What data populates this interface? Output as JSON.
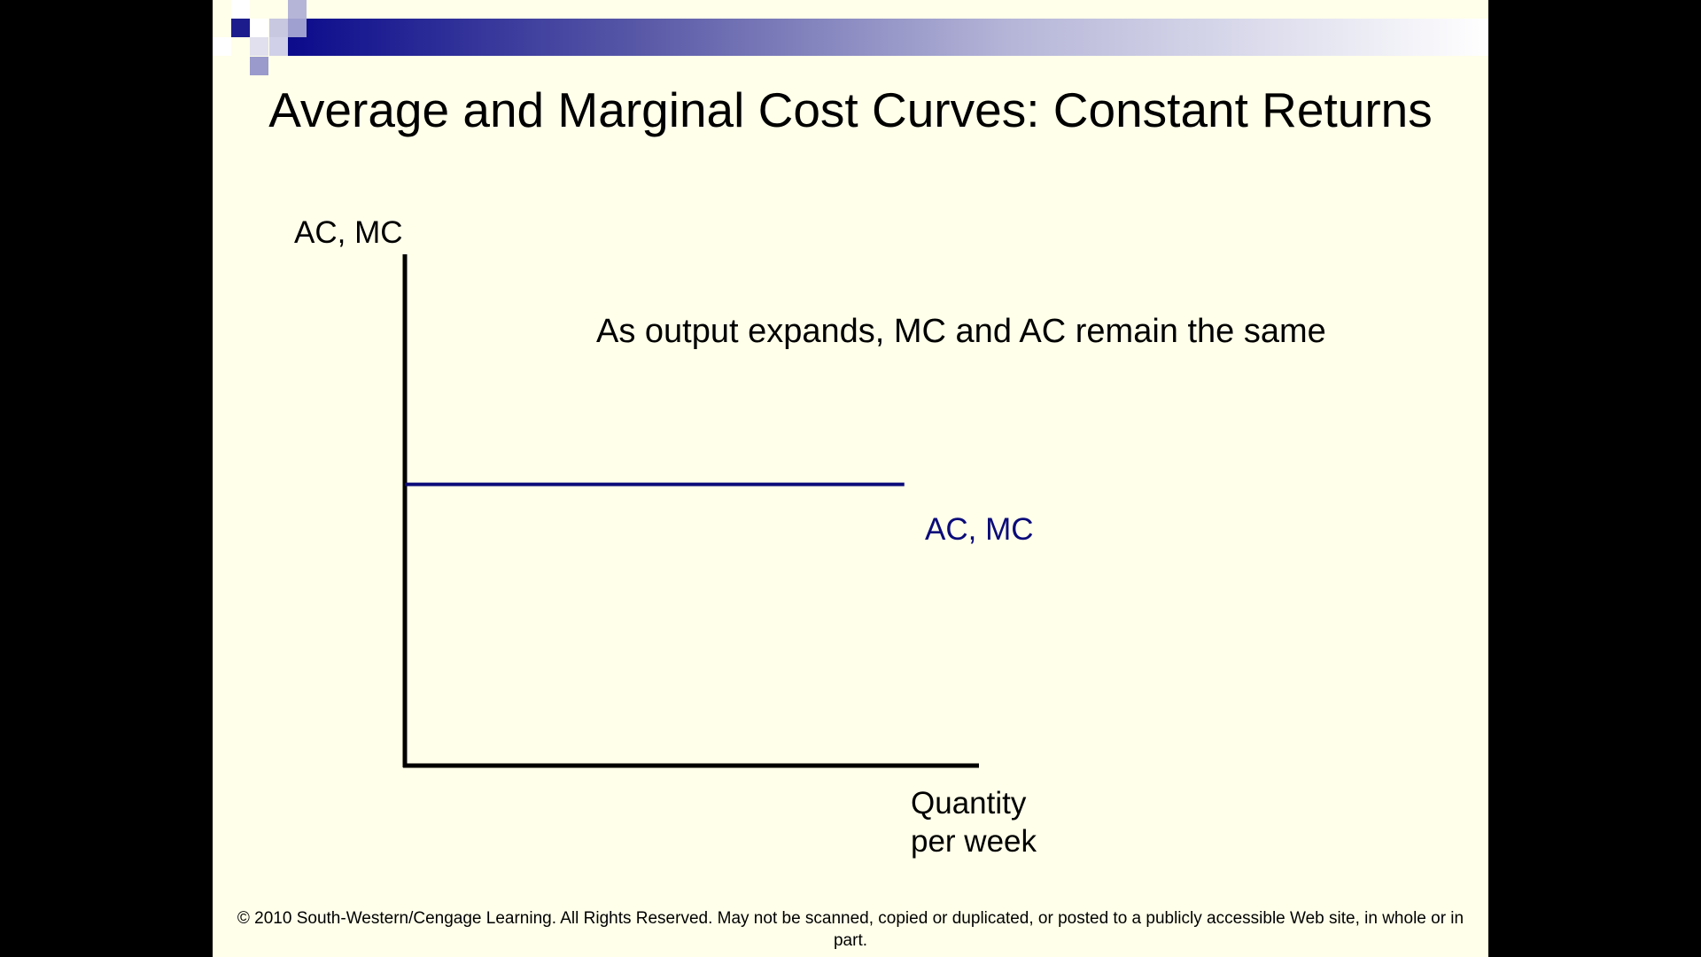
{
  "slide": {
    "title": "Average and Marginal Cost Curves: Constant Returns",
    "footer": "© 2010 South-Western/Cengage Learning. All Rights Reserved. May not be scanned, copied or duplicated, or posted to a publicly accessible Web site, in whole or in part."
  },
  "colors": {
    "background": "#FFFFEA",
    "banner_dark": "#0B0B8C",
    "curve": "#0B0B7A",
    "axes": "#000000"
  },
  "chart_data": {
    "type": "line",
    "title": "Average and Marginal Cost Curves: Constant Returns",
    "xlabel_line1": "Quantity",
    "xlabel_line2": "per week",
    "ylabel": "AC, MC",
    "annotation": "As output expands, MC and AC remain the same",
    "grid": false,
    "series": [
      {
        "name": "AC, MC",
        "x": [
          0,
          0.87
        ],
        "values": [
          0.55,
          0.55
        ]
      }
    ],
    "xlim": [
      0,
      1
    ],
    "ylim": [
      0,
      1
    ]
  }
}
